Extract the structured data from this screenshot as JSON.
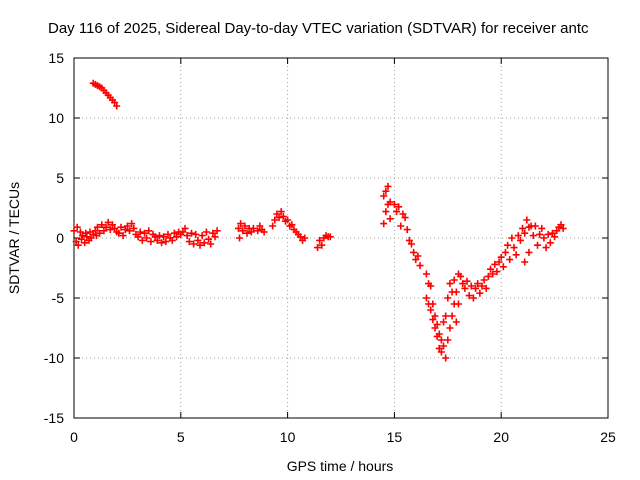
{
  "chart_data": {
    "type": "scatter",
    "title": "Day 116 of 2025, Sidereal Day-to-day VTEC variation (SDTVAR) for receiver antc",
    "xlabel": "GPS time / hours",
    "ylabel": "SDTVAR / TECUs",
    "xlim": [
      0,
      25
    ],
    "ylim": [
      -15,
      15
    ],
    "xticks": [
      0,
      5,
      10,
      15,
      20,
      25
    ],
    "yticks": [
      -15,
      -10,
      -5,
      0,
      5,
      10,
      15
    ],
    "grid": true,
    "marker": "+",
    "series": [
      {
        "name": "SDTVAR",
        "color": "#ff0000",
        "points": [
          [
            0.0,
            0.6
          ],
          [
            0.1,
            -0.3
          ],
          [
            0.15,
            0.9
          ],
          [
            0.2,
            -0.6
          ],
          [
            0.3,
            0.5
          ],
          [
            0.35,
            -0.1
          ],
          [
            0.4,
            0.2
          ],
          [
            0.5,
            -0.4
          ],
          [
            0.55,
            0.4
          ],
          [
            0.6,
            0.1
          ],
          [
            0.7,
            -0.2
          ],
          [
            0.75,
            0.5
          ],
          [
            0.8,
            0.0
          ],
          [
            0.9,
            0.3
          ],
          [
            1.0,
            0.6
          ],
          [
            1.05,
            0.2
          ],
          [
            1.1,
            0.9
          ],
          [
            1.2,
            0.4
          ],
          [
            1.3,
            1.1
          ],
          [
            1.4,
            0.6
          ],
          [
            1.5,
            0.9
          ],
          [
            1.6,
            1.3
          ],
          [
            1.7,
            0.7
          ],
          [
            1.8,
            1.1
          ],
          [
            1.9,
            0.8
          ],
          [
            2.0,
            0.5
          ],
          [
            0.9,
            12.9
          ],
          [
            1.0,
            12.8
          ],
          [
            1.1,
            12.7
          ],
          [
            1.2,
            12.6
          ],
          [
            1.3,
            12.5
          ],
          [
            1.4,
            12.3
          ],
          [
            1.5,
            12.1
          ],
          [
            1.6,
            11.9
          ],
          [
            1.7,
            11.7
          ],
          [
            1.8,
            11.5
          ],
          [
            1.9,
            11.3
          ],
          [
            2.0,
            11.0
          ],
          [
            2.1,
            0.4
          ],
          [
            2.2,
            0.9
          ],
          [
            2.3,
            0.2
          ],
          [
            2.4,
            0.7
          ],
          [
            2.5,
            1.0
          ],
          [
            2.6,
            0.6
          ],
          [
            2.7,
            1.2
          ],
          [
            2.8,
            0.8
          ],
          [
            2.9,
            0.3
          ],
          [
            3.0,
            0.1
          ],
          [
            3.1,
            0.5
          ],
          [
            3.2,
            -0.2
          ],
          [
            3.3,
            0.4
          ],
          [
            3.4,
            0.0
          ],
          [
            3.5,
            0.6
          ],
          [
            3.6,
            -0.3
          ],
          [
            3.7,
            0.3
          ],
          [
            3.8,
            0.1
          ],
          [
            3.9,
            -0.2
          ],
          [
            4.0,
            0.2
          ],
          [
            4.1,
            -0.4
          ],
          [
            4.2,
            0.1
          ],
          [
            4.3,
            -0.3
          ],
          [
            4.4,
            0.3
          ],
          [
            4.5,
            0.0
          ],
          [
            4.6,
            -0.2
          ],
          [
            4.7,
            0.4
          ],
          [
            4.8,
            0.1
          ],
          [
            4.9,
            0.5
          ],
          [
            5.0,
            0.3
          ],
          [
            5.1,
            0.5
          ],
          [
            5.2,
            0.8
          ],
          [
            5.3,
            0.2
          ],
          [
            5.4,
            -0.3
          ],
          [
            5.5,
            0.4
          ],
          [
            5.6,
            -0.5
          ],
          [
            5.7,
            0.3
          ],
          [
            5.8,
            -0.2
          ],
          [
            5.9,
            -0.6
          ],
          [
            6.0,
            0.2
          ],
          [
            6.1,
            -0.4
          ],
          [
            6.2,
            0.5
          ],
          [
            6.3,
            -0.1
          ],
          [
            6.4,
            -0.5
          ],
          [
            6.5,
            0.4
          ],
          [
            6.6,
            0.1
          ],
          [
            6.7,
            0.6
          ],
          [
            7.7,
            0.8
          ],
          [
            7.75,
            0.0
          ],
          [
            7.8,
            1.2
          ],
          [
            7.9,
            0.6
          ],
          [
            8.0,
            1.0
          ],
          [
            8.1,
            0.4
          ],
          [
            8.2,
            0.8
          ],
          [
            8.3,
            0.5
          ],
          [
            8.4,
            0.8
          ],
          [
            8.6,
            0.6
          ],
          [
            8.7,
            1.0
          ],
          [
            8.8,
            0.7
          ],
          [
            8.9,
            0.5
          ],
          [
            9.3,
            1.0
          ],
          [
            9.4,
            1.5
          ],
          [
            9.5,
            2.0
          ],
          [
            9.6,
            1.7
          ],
          [
            9.7,
            2.2
          ],
          [
            9.8,
            1.8
          ],
          [
            9.9,
            1.4
          ],
          [
            10.0,
            1.5
          ],
          [
            10.1,
            1.0
          ],
          [
            10.2,
            1.1
          ],
          [
            10.3,
            0.7
          ],
          [
            10.4,
            0.5
          ],
          [
            10.5,
            0.3
          ],
          [
            10.6,
            0.1
          ],
          [
            10.7,
            -0.2
          ],
          [
            10.8,
            0.0
          ],
          [
            11.4,
            -0.8
          ],
          [
            11.5,
            -0.2
          ],
          [
            11.6,
            -0.6
          ],
          [
            11.7,
            0.0
          ],
          [
            11.8,
            0.2
          ],
          [
            11.9,
            0.1
          ],
          [
            12.0,
            0.1
          ],
          [
            14.5,
            3.5
          ],
          [
            14.5,
            1.2
          ],
          [
            14.6,
            3.9
          ],
          [
            14.6,
            2.2
          ],
          [
            14.7,
            4.3
          ],
          [
            14.7,
            2.8
          ],
          [
            14.8,
            3.0
          ],
          [
            14.8,
            1.6
          ],
          [
            15.0,
            2.8
          ],
          [
            15.1,
            2.2
          ],
          [
            15.2,
            2.6
          ],
          [
            15.3,
            1.0
          ],
          [
            15.4,
            2.0
          ],
          [
            15.5,
            1.7
          ],
          [
            15.6,
            0.7
          ],
          [
            15.7,
            -0.2
          ],
          [
            15.8,
            -0.5
          ],
          [
            15.9,
            -1.2
          ],
          [
            16.0,
            -1.8
          ],
          [
            16.1,
            -1.5
          ],
          [
            16.2,
            -2.3
          ],
          [
            16.5,
            -3.0
          ],
          [
            16.5,
            -5.0
          ],
          [
            16.6,
            -3.8
          ],
          [
            16.6,
            -5.5
          ],
          [
            16.7,
            -4.0
          ],
          [
            16.7,
            -6.0
          ],
          [
            16.8,
            -5.5
          ],
          [
            16.8,
            -6.8
          ],
          [
            16.9,
            -6.5
          ],
          [
            16.9,
            -7.5
          ],
          [
            17.0,
            -7.2
          ],
          [
            17.0,
            -8.2
          ],
          [
            17.1,
            -8.0
          ],
          [
            17.1,
            -9.2
          ],
          [
            17.2,
            -8.5
          ],
          [
            17.2,
            -9.5
          ],
          [
            17.3,
            -7.0
          ],
          [
            17.3,
            -9.0
          ],
          [
            17.4,
            -10.0
          ],
          [
            17.4,
            -6.5
          ],
          [
            17.5,
            -8.5
          ],
          [
            17.5,
            -5.0
          ],
          [
            17.6,
            -7.5
          ],
          [
            17.6,
            -3.8
          ],
          [
            17.7,
            -6.5
          ],
          [
            17.7,
            -4.5
          ],
          [
            17.8,
            -5.5
          ],
          [
            17.8,
            -3.5
          ],
          [
            17.9,
            -4.5
          ],
          [
            17.9,
            -7.0
          ],
          [
            18.0,
            -3.0
          ],
          [
            18.0,
            -5.5
          ],
          [
            18.1,
            -3.2
          ],
          [
            18.2,
            -3.8
          ],
          [
            18.3,
            -4.2
          ],
          [
            18.4,
            -3.6
          ],
          [
            18.5,
            -4.8
          ],
          [
            18.6,
            -4.0
          ],
          [
            18.7,
            -5.0
          ],
          [
            18.8,
            -4.2
          ],
          [
            18.9,
            -3.8
          ],
          [
            19.0,
            -4.6
          ],
          [
            19.1,
            -4.0
          ],
          [
            19.2,
            -3.5
          ],
          [
            19.3,
            -4.2
          ],
          [
            19.4,
            -3.2
          ],
          [
            19.5,
            -2.6
          ],
          [
            19.6,
            -3.0
          ],
          [
            19.7,
            -2.2
          ],
          [
            19.8,
            -2.8
          ],
          [
            19.9,
            -2.0
          ],
          [
            20.0,
            -1.6
          ],
          [
            20.1,
            -2.4
          ],
          [
            20.2,
            -1.2
          ],
          [
            20.3,
            -0.6
          ],
          [
            20.4,
            -1.8
          ],
          [
            20.5,
            0.0
          ],
          [
            20.6,
            -0.8
          ],
          [
            20.7,
            -1.4
          ],
          [
            20.8,
            0.2
          ],
          [
            20.9,
            -0.2
          ],
          [
            21.0,
            0.8
          ],
          [
            21.1,
            0.4
          ],
          [
            21.1,
            -2.0
          ],
          [
            21.2,
            1.5
          ],
          [
            21.3,
            0.9
          ],
          [
            21.3,
            -1.2
          ],
          [
            21.4,
            1.0
          ],
          [
            21.5,
            0.2
          ],
          [
            21.6,
            1.0
          ],
          [
            21.7,
            -0.6
          ],
          [
            21.8,
            0.3
          ],
          [
            21.9,
            0.8
          ],
          [
            22.0,
            0.0
          ],
          [
            22.1,
            -0.8
          ],
          [
            22.2,
            0.3
          ],
          [
            22.3,
            -0.4
          ],
          [
            22.4,
            0.4
          ],
          [
            22.5,
            0.1
          ],
          [
            22.6,
            0.6
          ],
          [
            22.7,
            0.9
          ],
          [
            22.8,
            1.1
          ],
          [
            22.9,
            0.8
          ]
        ]
      }
    ]
  }
}
